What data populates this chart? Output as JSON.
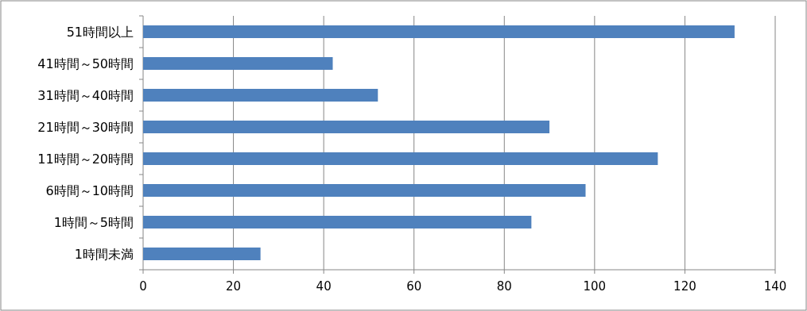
{
  "chart_data": {
    "type": "bar",
    "orientation": "horizontal",
    "categories": [
      "51時間以上",
      "41時間～50時間",
      "31時間～40時間",
      "21時間～30時間",
      "11時間～20時間",
      "6時間～10時間",
      "1時間～5時間",
      "1時間未満"
    ],
    "values": [
      131,
      42,
      52,
      90,
      114,
      98,
      86,
      26
    ],
    "color": "#4f81bd",
    "xlim": [
      0,
      140
    ],
    "xticks": [
      0,
      20,
      40,
      60,
      80,
      100,
      120,
      140
    ],
    "grid": "x"
  }
}
